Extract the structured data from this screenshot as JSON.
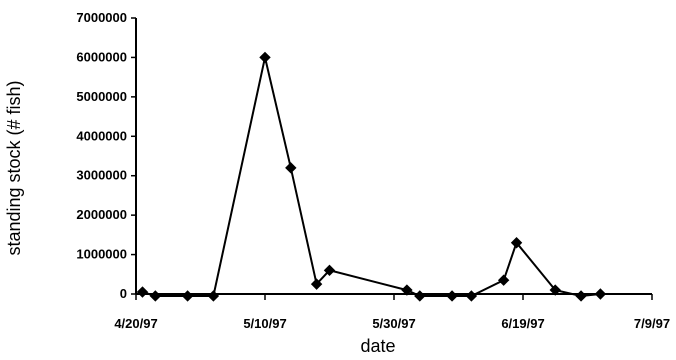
{
  "chart_data": {
    "type": "scatter",
    "xlabel": "date",
    "ylabel": "standing stock (# fish)",
    "xlim": [
      "4/20/97",
      "7/9/97"
    ],
    "ylim": [
      0,
      7000000
    ],
    "x_ticks": [
      "4/20/97",
      "5/10/97",
      "5/30/97",
      "6/19/97",
      "7/9/97"
    ],
    "y_ticks": [
      "0",
      "1000000",
      "2000000",
      "3000000",
      "4000000",
      "5000000",
      "6000000",
      "7000000"
    ],
    "grid": false,
    "legend": "none",
    "series": [
      {
        "x": [
          "4/21/97",
          "4/23/97",
          "4/28/97",
          "5/2/97",
          "5/10/97",
          "5/14/97",
          "5/18/97",
          "5/20/97",
          "6/1/97",
          "6/3/97",
          "6/8/97",
          "6/11/97",
          "6/16/97",
          "6/18/97",
          "6/24/97",
          "6/28/97",
          "7/1/97"
        ],
        "y": [
          50000,
          -50000,
          -50000,
          -50000,
          6000000,
          3200000,
          250000,
          600000,
          100000,
          -50000,
          -50000,
          -50000,
          350000,
          1300000,
          100000,
          -50000,
          0
        ]
      }
    ],
    "line_color": "#000000",
    "marker": "diamond"
  }
}
